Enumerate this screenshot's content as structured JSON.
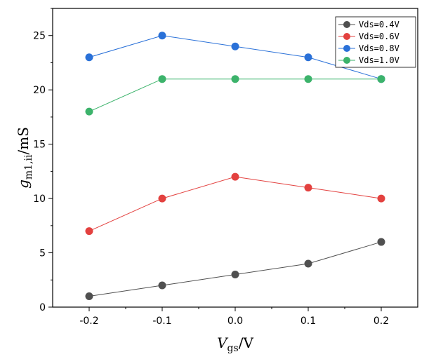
{
  "chart_data": {
    "type": "line",
    "x": [
      -0.2,
      -0.1,
      0.0,
      0.1,
      0.2
    ],
    "x_tick_labels": [
      "-0.2",
      "-0.1",
      "0.0",
      "0.1",
      "0.2"
    ],
    "y_ticks": [
      0,
      5,
      10,
      15,
      20,
      25
    ],
    "y_tick_labels": [
      "0",
      "5",
      "10",
      "15",
      "20",
      "25"
    ],
    "xlim": [
      -0.25,
      0.25
    ],
    "ylim": [
      0,
      27.5
    ],
    "xlabel": {
      "main": "V",
      "sub": "gs",
      "rest": "/V"
    },
    "ylabel": {
      "main": "g",
      "sub": "m1,ii",
      "rest": "/mS"
    },
    "grid": false,
    "legend_position": "top-right",
    "series": [
      {
        "name": "Vds=0.4V",
        "color": "#505050",
        "values": [
          1,
          2,
          3,
          4,
          6
        ]
      },
      {
        "name": "Vds=0.6V",
        "color": "#e3413f",
        "values": [
          7,
          10,
          12,
          11,
          10
        ]
      },
      {
        "name": "Vds=0.8V",
        "color": "#2a71d8",
        "values": [
          23,
          25,
          24,
          23,
          21
        ]
      },
      {
        "name": "Vds=1.0V",
        "color": "#3cb36b",
        "values": [
          18,
          21,
          21,
          21,
          21
        ]
      }
    ]
  }
}
